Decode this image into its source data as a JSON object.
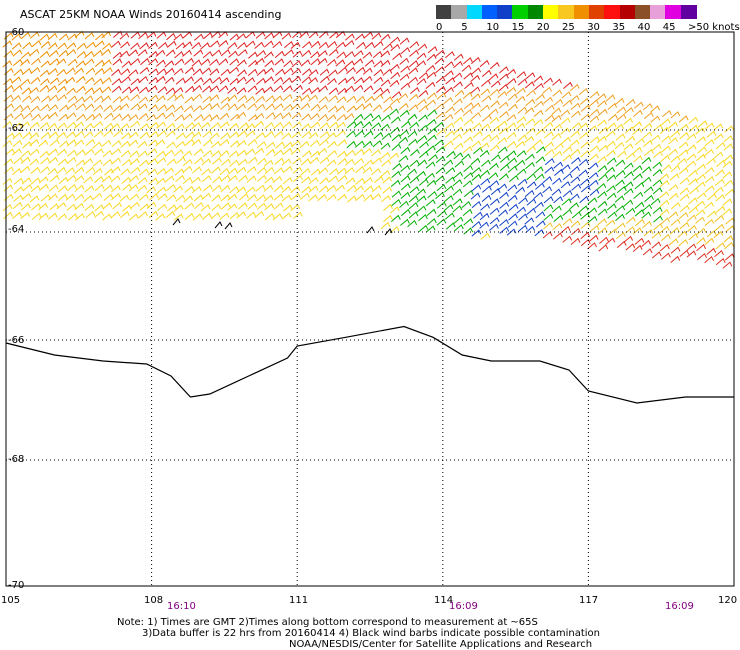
{
  "title": "ASCAT 25KM NOAA Winds 20160414 ascending",
  "legend": {
    "colors": [
      "#404040",
      "#a8a8a8",
      "#00d8ff",
      "#0060ff",
      "#1040c8",
      "#00d000",
      "#008800",
      "#ffff00",
      "#f8c820",
      "#f09000",
      "#e04000",
      "#ff1010",
      "#b40000",
      "#8c5028",
      "#e8a0d8",
      "#e000e0",
      "#6000a0"
    ],
    "ticks": [
      {
        "label": "0",
        "fraction": 0.0
      },
      {
        "label": "5",
        "fraction": 0.1
      },
      {
        "label": "10",
        "fraction": 0.2
      },
      {
        "label": "15",
        "fraction": 0.3
      },
      {
        "label": "20",
        "fraction": 0.4
      },
      {
        "label": "25",
        "fraction": 0.5
      },
      {
        "label": "30",
        "fraction": 0.6
      },
      {
        "label": "35",
        "fraction": 0.7
      },
      {
        "label": "40",
        "fraction": 0.8
      },
      {
        "label": "45",
        "fraction": 0.9
      },
      {
        "label": ">50 knots",
        "fraction": 1.0
      }
    ]
  },
  "map": {
    "lon_range": [
      105,
      120
    ],
    "lat_range": [
      -60,
      -70
    ],
    "lon_labels": [
      "105",
      "108",
      "111",
      "114",
      "117",
      "120"
    ],
    "lat_labels": [
      "-60",
      "-62",
      "-64",
      "-66",
      "-68",
      "-70"
    ],
    "times": [
      "16:10",
      "16:09",
      "16:09"
    ],
    "coastline": [
      [
        105,
        -66.05
      ],
      [
        106,
        -66.25
      ],
      [
        107,
        -66.35
      ],
      [
        107.9,
        -66.4
      ],
      [
        108.4,
        -66.6
      ],
      [
        108.8,
        -66.95
      ],
      [
        109.2,
        -66.9
      ],
      [
        110,
        -66.6
      ],
      [
        110.8,
        -66.3
      ],
      [
        111,
        -66.1
      ],
      [
        112,
        -65.95
      ],
      [
        113.2,
        -65.75
      ],
      [
        113.8,
        -65.95
      ],
      [
        114.4,
        -66.25
      ],
      [
        115,
        -66.35
      ],
      [
        116,
        -66.35
      ],
      [
        116.6,
        -66.5
      ],
      [
        117,
        -66.85
      ],
      [
        118,
        -67.05
      ],
      [
        119,
        -66.95
      ],
      [
        120,
        -66.95
      ]
    ]
  },
  "notes": [
    "Note: 1) Times are GMT 2)Times along bottom correspond to measurement at ~65S",
    "3)Data buffer is 22 hrs from 20160414 4) Black wind barbs indicate possible contamination",
    "NOAA/NESDIS/Center for Satellite Applications and Research"
  ]
}
